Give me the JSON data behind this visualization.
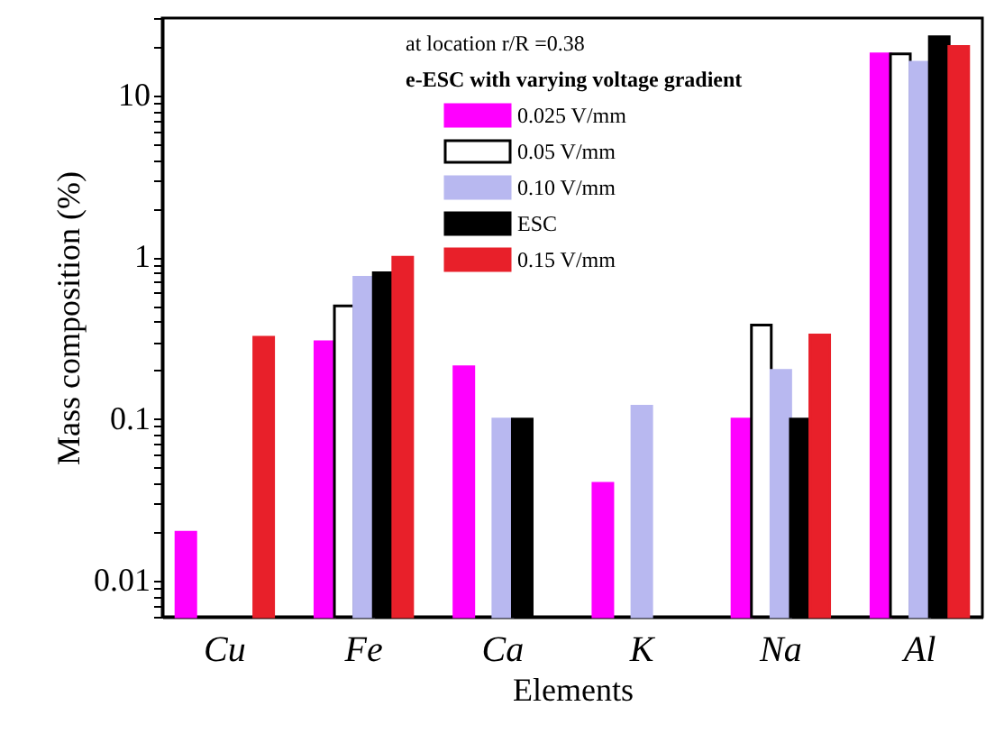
{
  "chart_data": {
    "type": "bar",
    "xlabel": "Elements",
    "ylabel": "Mass composition (%)",
    "legend_title": "at location r/R =0.38",
    "annotations": [
      "e-ESC with varying voltage gradient"
    ],
    "categories": [
      "Cu",
      "Fe",
      "Ca",
      "K",
      "Na",
      "Al"
    ],
    "series": [
      {
        "name": "0.025 V/mm",
        "color": "#ff00ff",
        "values": [
          0.02,
          0.3,
          0.21,
          0.04,
          0.1,
          18
        ]
      },
      {
        "name": "0.05 V/mm",
        "color": "#ffffff",
        "values": [
          null,
          0.5,
          null,
          null,
          0.38,
          18
        ]
      },
      {
        "name": "0.10 V/mm",
        "color": "#b8b8f0",
        "values": [
          null,
          0.75,
          0.1,
          0.12,
          0.2,
          16
        ]
      },
      {
        "name": "ESC",
        "color": "#000000",
        "values": [
          null,
          0.8,
          0.1,
          null,
          0.1,
          23
        ]
      },
      {
        "name": "0.15 V/mm",
        "color": "#e8202a",
        "values": [
          0.32,
          1.0,
          null,
          null,
          0.33,
          20
        ]
      }
    ],
    "log": true,
    "ylim": [
      0.006,
      30
    ],
    "yticks": [
      {
        "value": 0.006,
        "label": null
      },
      {
        "value": 0.007,
        "label": null
      },
      {
        "value": 0.008,
        "label": null
      },
      {
        "value": 0.009,
        "label": null
      },
      0.01,
      {
        "value": 0.02,
        "label": null
      },
      {
        "value": 0.03,
        "label": null
      },
      {
        "value": 0.04,
        "label": null
      },
      {
        "value": 0.05,
        "label": null
      },
      {
        "value": 0.06,
        "label": null
      },
      {
        "value": 0.07,
        "label": null
      },
      {
        "value": 0.08,
        "label": null
      },
      {
        "value": 0.09,
        "label": null
      },
      0.1,
      {
        "value": 0.2,
        "label": null
      },
      {
        "value": 0.3,
        "label": null
      },
      {
        "value": 0.4,
        "label": null
      },
      {
        "value": 0.5,
        "label": null
      },
      {
        "value": 0.6,
        "label": null
      },
      {
        "value": 0.7,
        "label": null
      },
      {
        "value": 0.8,
        "label": null
      },
      {
        "value": 0.9,
        "label": null
      },
      1,
      {
        "value": 2,
        "label": null
      },
      {
        "value": 3,
        "label": null
      },
      {
        "value": 4,
        "label": null
      },
      {
        "value": 5,
        "label": null
      },
      {
        "value": 6,
        "label": null
      },
      {
        "value": 7,
        "label": null
      },
      {
        "value": 8,
        "label": null
      },
      {
        "value": 9,
        "label": null
      },
      10,
      {
        "value": 20,
        "label": null
      },
      {
        "value": 30,
        "label": null
      }
    ],
    "grid": false,
    "legend": "top"
  }
}
